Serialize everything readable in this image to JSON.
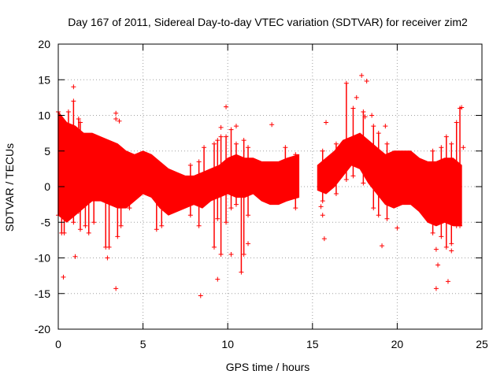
{
  "chart_data": {
    "type": "scatter",
    "title": "Day 167 of 2011, Sidereal Day-to-day VTEC variation (SDTVAR) for receiver zim2",
    "xlabel": "GPS time / hours",
    "ylabel": "SDTVAR / TECUs",
    "xlim": [
      0,
      25
    ],
    "ylim": [
      -20,
      20
    ],
    "x_ticks": [
      0,
      5,
      10,
      15,
      20,
      25
    ],
    "x_tick_labels": [
      "0",
      "5",
      "10",
      "15",
      "20",
      "25"
    ],
    "y_ticks": [
      -20,
      -15,
      -10,
      -5,
      0,
      5,
      10,
      15,
      20
    ],
    "y_tick_labels": [
      "-20",
      "-15",
      "-10",
      "-5",
      "0",
      "5",
      "10",
      "15",
      "20"
    ],
    "grid": true,
    "marker": "+",
    "color": "#ff0000",
    "series": [
      {
        "name": "SDTVAR",
        "envelope_upper": [
          [
            0.0,
            10.5
          ],
          [
            0.5,
            9.0
          ],
          [
            1.0,
            8.5
          ],
          [
            1.5,
            7.5
          ],
          [
            2.0,
            7.5
          ],
          [
            2.5,
            7.0
          ],
          [
            3.0,
            6.5
          ],
          [
            3.5,
            6.0
          ],
          [
            4.0,
            5.0
          ],
          [
            4.5,
            4.5
          ],
          [
            5.0,
            5.0
          ],
          [
            5.5,
            4.5
          ],
          [
            6.0,
            3.5
          ],
          [
            6.5,
            2.5
          ],
          [
            7.0,
            2.0
          ],
          [
            7.5,
            1.5
          ],
          [
            8.0,
            1.5
          ],
          [
            8.5,
            2.0
          ],
          [
            9.0,
            2.5
          ],
          [
            9.5,
            3.0
          ],
          [
            10.0,
            4.0
          ],
          [
            10.5,
            4.5
          ],
          [
            11.0,
            4.0
          ],
          [
            11.5,
            4.0
          ],
          [
            12.0,
            3.5
          ],
          [
            12.5,
            3.5
          ],
          [
            13.0,
            3.5
          ],
          [
            13.5,
            4.0
          ],
          [
            14.2,
            4.5
          ]
        ],
        "envelope_lower": [
          [
            0.0,
            -4.0
          ],
          [
            0.5,
            -5.0
          ],
          [
            1.0,
            -4.0
          ],
          [
            1.5,
            -3.0
          ],
          [
            2.0,
            -2.0
          ],
          [
            2.5,
            -2.0
          ],
          [
            3.0,
            -2.5
          ],
          [
            3.5,
            -3.0
          ],
          [
            4.0,
            -3.0
          ],
          [
            4.5,
            -2.0
          ],
          [
            5.0,
            -1.0
          ],
          [
            5.5,
            -1.5
          ],
          [
            6.0,
            -3.0
          ],
          [
            6.5,
            -4.0
          ],
          [
            7.0,
            -3.5
          ],
          [
            7.5,
            -3.0
          ],
          [
            8.0,
            -2.5
          ],
          [
            8.5,
            -3.0
          ],
          [
            9.0,
            -2.0
          ],
          [
            9.5,
            -1.5
          ],
          [
            10.0,
            -1.0
          ],
          [
            10.5,
            -1.5
          ],
          [
            11.0,
            -1.5
          ],
          [
            11.5,
            -1.0
          ],
          [
            12.0,
            -2.0
          ],
          [
            12.5,
            -2.5
          ],
          [
            13.0,
            -2.5
          ],
          [
            13.5,
            -2.0
          ],
          [
            14.2,
            -1.5
          ]
        ],
        "envelope_upper_2": [
          [
            15.3,
            3.0
          ],
          [
            15.8,
            4.0
          ],
          [
            16.3,
            5.0
          ],
          [
            16.8,
            6.5
          ],
          [
            17.3,
            7.0
          ],
          [
            17.8,
            7.5
          ],
          [
            18.3,
            6.5
          ],
          [
            18.8,
            5.5
          ],
          [
            19.3,
            4.5
          ],
          [
            19.8,
            5.0
          ],
          [
            20.3,
            5.0
          ],
          [
            20.8,
            5.0
          ],
          [
            21.3,
            4.0
          ],
          [
            21.8,
            3.5
          ],
          [
            22.3,
            3.5
          ],
          [
            22.8,
            4.0
          ],
          [
            23.3,
            4.0
          ],
          [
            23.8,
            3.0
          ]
        ],
        "envelope_lower_2": [
          [
            15.3,
            -0.5
          ],
          [
            15.8,
            -1.0
          ],
          [
            16.3,
            0.0
          ],
          [
            16.8,
            1.5
          ],
          [
            17.3,
            3.0
          ],
          [
            17.8,
            2.5
          ],
          [
            18.3,
            0.5
          ],
          [
            18.8,
            -1.0
          ],
          [
            19.3,
            -2.5
          ],
          [
            19.8,
            -3.0
          ],
          [
            20.3,
            -2.5
          ],
          [
            20.8,
            -2.5
          ],
          [
            21.3,
            -3.5
          ],
          [
            21.8,
            -5.0
          ],
          [
            22.3,
            -5.5
          ],
          [
            22.8,
            -5.0
          ],
          [
            23.3,
            -5.5
          ],
          [
            23.8,
            -5.5
          ]
        ],
        "spikes": [
          [
            0.0,
            10.5,
            -4.0
          ],
          [
            0.2,
            8.5,
            -6.5
          ],
          [
            0.35,
            7.5,
            -6.5
          ],
          [
            0.6,
            10.5,
            -3.0
          ],
          [
            0.9,
            12.0,
            -5.0
          ],
          [
            1.2,
            9.5,
            -3.5
          ],
          [
            1.3,
            9.0,
            -6.0
          ],
          [
            1.6,
            6.5,
            -5.5
          ],
          [
            1.8,
            7.0,
            -6.5
          ],
          [
            2.1,
            6.5,
            -5.0
          ],
          [
            2.8,
            6.0,
            -8.5
          ],
          [
            3.0,
            5.5,
            -8.5
          ],
          [
            3.5,
            4.5,
            -7.0
          ],
          [
            3.7,
            4.0,
            -5.5
          ],
          [
            4.2,
            4.0,
            -3.0
          ],
          [
            5.8,
            3.5,
            -6.0
          ],
          [
            6.1,
            3.0,
            -5.5
          ],
          [
            7.8,
            3.0,
            -4.0
          ],
          [
            8.3,
            3.5,
            -5.5
          ],
          [
            8.6,
            5.5,
            -1.5
          ],
          [
            9.2,
            6.0,
            -8.5
          ],
          [
            9.4,
            6.5,
            -4.5
          ],
          [
            9.6,
            7.0,
            -9.5
          ],
          [
            9.9,
            7.0,
            -5.0
          ],
          [
            10.2,
            8.0,
            -3.0
          ],
          [
            10.5,
            6.0,
            -2.5
          ],
          [
            10.8,
            3.5,
            -12.0
          ],
          [
            10.95,
            6.5,
            -9.5
          ],
          [
            11.2,
            5.5,
            -4.0
          ],
          [
            13.4,
            5.5,
            -1.5
          ],
          [
            14.0,
            4.5,
            -3.0
          ],
          [
            15.6,
            5.0,
            -2.0
          ],
          [
            16.4,
            6.0,
            -1.0
          ],
          [
            17.0,
            14.5,
            1.0
          ],
          [
            17.4,
            11.0,
            1.5
          ],
          [
            18.0,
            10.5,
            0.5
          ],
          [
            18.6,
            8.5,
            -3.0
          ],
          [
            18.9,
            7.5,
            -4.0
          ],
          [
            19.4,
            6.0,
            -4.5
          ],
          [
            22.1,
            5.0,
            -6.5
          ],
          [
            22.6,
            5.5,
            -7.0
          ],
          [
            22.9,
            7.0,
            -8.5
          ],
          [
            23.2,
            6.0,
            -8.0
          ],
          [
            23.5,
            9.0,
            -5.5
          ],
          [
            23.7,
            11.0,
            -5.5
          ]
        ],
        "outliers": [
          [
            0.3,
            -12.7
          ],
          [
            0.9,
            14.0
          ],
          [
            1.0,
            -9.8
          ],
          [
            3.4,
            10.3
          ],
          [
            3.4,
            9.5
          ],
          [
            3.6,
            9.2
          ],
          [
            3.4,
            -14.3
          ],
          [
            2.9,
            -10.0
          ],
          [
            8.4,
            -15.3
          ],
          [
            9.4,
            -13.0
          ],
          [
            9.6,
            8.3
          ],
          [
            9.9,
            11.2
          ],
          [
            10.2,
            -9.5
          ],
          [
            10.5,
            8.5
          ],
          [
            12.6,
            8.7
          ],
          [
            11.2,
            -8.0
          ],
          [
            15.8,
            9.0
          ],
          [
            15.7,
            -7.3
          ],
          [
            15.5,
            -2.8
          ],
          [
            15.6,
            -4.0
          ],
          [
            17.6,
            12.5
          ],
          [
            17.9,
            15.6
          ],
          [
            18.2,
            14.8
          ],
          [
            18.5,
            10.0
          ],
          [
            18.1,
            9.8
          ],
          [
            19.1,
            -8.3
          ],
          [
            20.0,
            -5.8
          ],
          [
            19.3,
            8.5
          ],
          [
            22.3,
            -14.3
          ],
          [
            22.4,
            -11.0
          ],
          [
            22.3,
            -8.8
          ],
          [
            23.0,
            -13.3
          ],
          [
            23.2,
            -9.0
          ],
          [
            23.8,
            11.1
          ],
          [
            23.9,
            5.5
          ]
        ]
      }
    ]
  }
}
